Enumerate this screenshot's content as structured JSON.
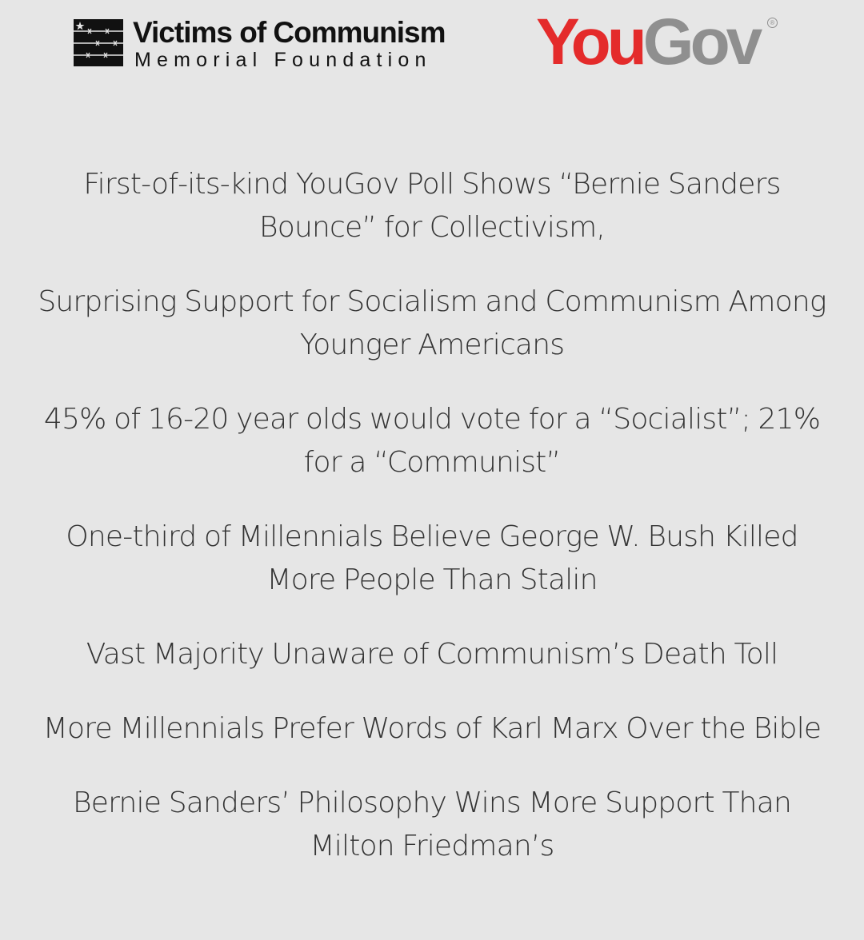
{
  "logos": {
    "voc": {
      "title": "Victims of Communism",
      "subtitle": "Memorial Foundation"
    },
    "yougov": {
      "part1": "You",
      "part2": "Gov",
      "reg_mark": "®",
      "colors": {
        "you": "#e42b2b",
        "gov": "#8f8f8f"
      }
    }
  },
  "headlines": [
    "First-of-its-kind YouGov Poll Shows “Bernie Sanders Bounce” for Collectivism,",
    "Surprising Support for Socialism and Communism Among Younger Americans",
    "45% of 16-20 year olds would vote for a “Socialist”; 21% for a “Communist”",
    "One-third of Millennials Believe George W. Bush Killed More People Than Stalin",
    "Vast Majority Unaware of Communism’s Death Toll",
    "More Millennials Prefer Words of Karl Marx Over the Bible",
    "Bernie Sanders’ Philosophy Wins More Support Than Milton Friedman’s"
  ],
  "colors": {
    "background": "#e6e6e6",
    "text": "#333333"
  }
}
